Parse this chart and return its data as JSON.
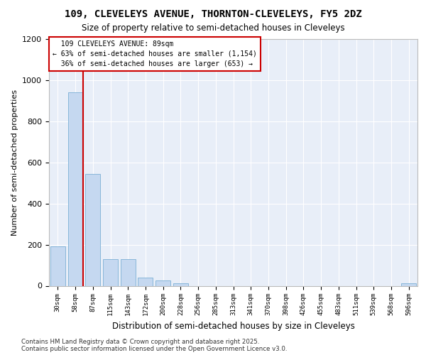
{
  "title_line1": "109, CLEVELEYS AVENUE, THORNTON-CLEVELEYS, FY5 2DZ",
  "title_line2": "Size of property relative to semi-detached houses in Cleveleys",
  "xlabel": "Distribution of semi-detached houses by size in Cleveleys",
  "ylabel": "Number of semi-detached properties",
  "categories": [
    "30sqm",
    "58sqm",
    "87sqm",
    "115sqm",
    "143sqm",
    "172sqm",
    "200sqm",
    "228sqm",
    "256sqm",
    "285sqm",
    "313sqm",
    "341sqm",
    "370sqm",
    "398sqm",
    "426sqm",
    "455sqm",
    "483sqm",
    "511sqm",
    "539sqm",
    "568sqm",
    "596sqm"
  ],
  "values": [
    190,
    940,
    545,
    130,
    130,
    38,
    25,
    11,
    0,
    0,
    0,
    0,
    0,
    0,
    0,
    0,
    0,
    0,
    0,
    0,
    11
  ],
  "bar_color": "#c5d8f0",
  "bar_edge_color": "#7aafd4",
  "annotation_box_color": "#cc0000",
  "ylim": [
    0,
    1200
  ],
  "yticks": [
    0,
    200,
    400,
    600,
    800,
    1000,
    1200
  ],
  "background_color": "#e8eef8",
  "grid_color": "#ffffff",
  "property_label": "109 CLEVELEYS AVENUE: 89sqm",
  "pct_smaller": 63,
  "count_smaller": 1154,
  "pct_larger": 36,
  "count_larger": 653,
  "vline_x_index": 2,
  "footer_line1": "Contains HM Land Registry data © Crown copyright and database right 2025.",
  "footer_line2": "Contains public sector information licensed under the Open Government Licence v3.0."
}
